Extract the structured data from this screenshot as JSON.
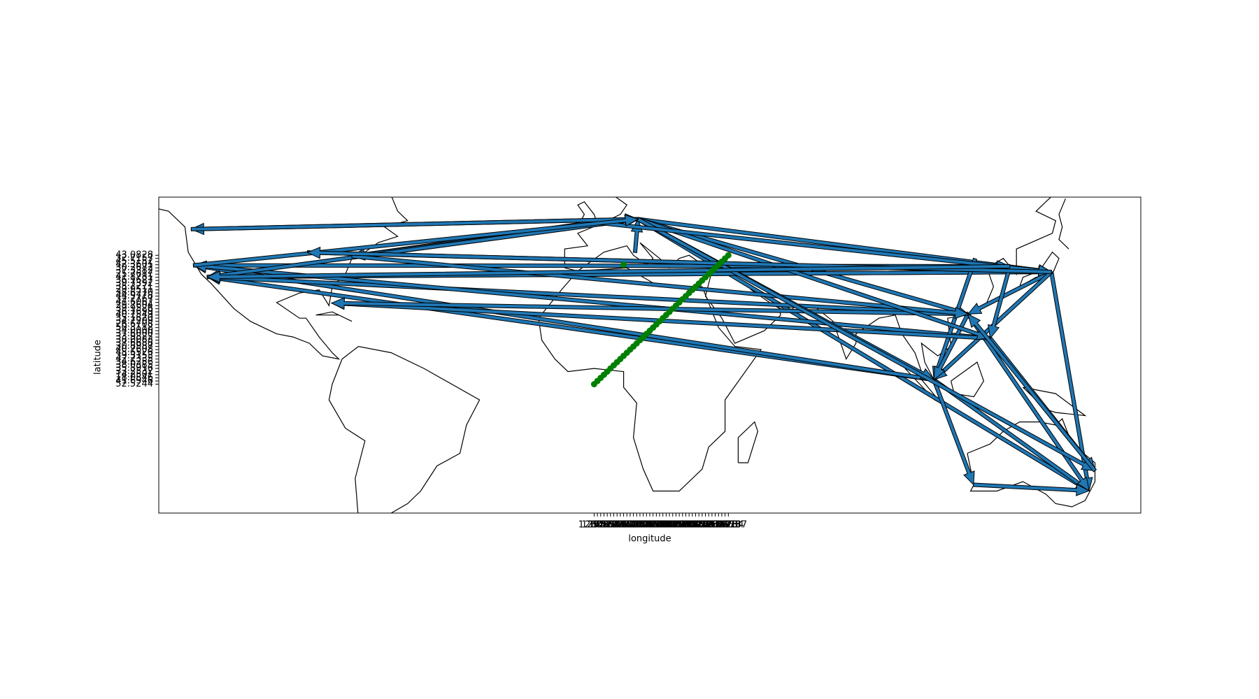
{
  "chart_data": {
    "type": "route-map",
    "x_label": "longitude",
    "y_label": "latitude",
    "xlim": [
      -133,
      167
    ],
    "ylim": [
      -41,
      59.5
    ],
    "arrow_color": "#1f77b4",
    "point_color": "#008000",
    "routes": [
      [
        13.4,
        52.5,
        -123.1,
        49.3
      ],
      [
        13.4,
        52.5,
        -118.2,
        34.1
      ],
      [
        13.4,
        52.5,
        139.7,
        35.7
      ],
      [
        13.4,
        52.5,
        151.2,
        -33.9
      ],
      [
        13.4,
        52.5,
        114.2,
        22.3
      ],
      [
        -0.1,
        51.5,
        -74.0,
        40.7
      ],
      [
        -74.0,
        40.7,
        13.4,
        52.5
      ],
      [
        -118.2,
        34.1,
        139.7,
        35.7
      ],
      [
        139.7,
        35.7,
        -118.2,
        34.1
      ],
      [
        -122.4,
        37.8,
        127.0,
        37.5
      ],
      [
        -87.6,
        41.9,
        139.7,
        35.7
      ],
      [
        139.7,
        35.7,
        151.2,
        -33.9
      ],
      [
        103.8,
        1.4,
        151.2,
        -33.9
      ],
      [
        103.8,
        1.4,
        115.9,
        -32.0
      ],
      [
        115.9,
        -32.0,
        151.2,
        -33.9
      ],
      [
        114.2,
        22.3,
        151.2,
        -33.9
      ],
      [
        121.0,
        14.6,
        153.0,
        -27.5
      ],
      [
        103.8,
        1.4,
        -118.2,
        34.1
      ],
      [
        103.8,
        1.4,
        -122.4,
        37.8
      ],
      [
        114.2,
        22.3,
        -118.2,
        34.1
      ],
      [
        121.0,
        14.6,
        -122.4,
        37.8
      ],
      [
        139.7,
        35.7,
        114.2,
        22.3
      ],
      [
        139.7,
        35.7,
        103.8,
        1.4
      ],
      [
        127.0,
        37.5,
        121.0,
        14.6
      ],
      [
        116.4,
        39.9,
        103.8,
        1.4
      ],
      [
        114.2,
        22.3,
        103.8,
        1.4
      ],
      [
        12.5,
        41.9,
        13.4,
        52.5
      ],
      [
        -118.2,
        34.1,
        13.4,
        52.5
      ],
      [
        121.0,
        14.6,
        -80.2,
        25.8
      ],
      [
        114.2,
        22.3,
        -80.2,
        25.8
      ],
      [
        -74.0,
        40.7,
        114.2,
        22.3
      ],
      [
        13.4,
        52.5,
        103.8,
        1.4
      ],
      [
        13.4,
        52.5,
        121.0,
        14.6
      ],
      [
        13.4,
        52.5,
        153.0,
        -27.5
      ],
      [
        -0.1,
        51.5,
        139.7,
        35.7
      ],
      [
        -123.1,
        49.3,
        13.4,
        52.5
      ],
      [
        -122.4,
        37.8,
        13.4,
        52.5
      ],
      [
        139.7,
        35.7,
        -87.6,
        41.9
      ],
      [
        127.0,
        37.5,
        -118.2,
        34.1
      ],
      [
        153.0,
        -27.5,
        114.2,
        22.3
      ]
    ],
    "points": {
      "x": [
        "1.2921",
        "1.8716",
        "2.3522",
        "3.0588",
        "3.3792",
        "4.3517",
        "4.8952",
        "5.5697",
        "6.1432",
        "6.9603",
        "7.4474",
        "8.2275",
        "8.6821",
        "9.1900",
        "9.7320",
        "10.4515",
        "11.2558",
        "11.9746",
        "12.4964",
        "13.4050",
        "14.2681",
        "14.5058",
        "15.9819",
        "16.3738",
        "17.1077",
        "18.0686",
        "18.6466",
        "19.0402",
        "19.9450",
        "20.4573",
        "21.0122",
        "21.8243",
        "22.9375",
        "23.3219",
        "24.1052",
        "24.7536",
        "25.2797",
        "26.1025",
        "27.1428",
        "28.0473",
        "28.9784",
        "29.9187",
        "6.9603"
      ],
      "y": [
        "52.5244",
        "41.6946",
        "18.0846",
        "14.2501",
        "33.2532",
        "35.8916",
        "38.0385",
        "34.6256",
        "42.7335",
        "39.3153",
        "45.6526",
        "40.7608",
        "30.8987",
        "37.6688",
        "38.0083",
        "33.9822",
        "37.6000",
        "34.0000",
        "50.3112",
        "26.6708",
        "34.7209",
        "35.1820",
        "40.7549",
        "36.1699",
        "39.9526",
        "29.7604",
        "47.6062",
        "32.7767",
        "44.9778",
        "38.6270",
        "29.9511",
        "35.2271",
        "39.7392",
        "36.1627",
        "41.8781",
        "25.7617",
        "37.3382",
        "30.2672",
        "42.3601",
        "45.5152",
        "32.7157",
        "43.0828",
        "42.3601"
      ]
    }
  }
}
